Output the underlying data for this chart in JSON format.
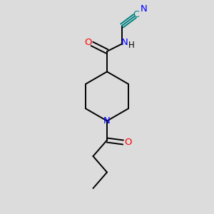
{
  "background_color": "#dcdcdc",
  "bond_color": "#000000",
  "atom_colors": {
    "O": "#ff0000",
    "N": "#0000ff",
    "C_cyano": "#008080"
  },
  "font_size": 8.5,
  "figsize": [
    3.0,
    3.0
  ],
  "dpi": 100
}
